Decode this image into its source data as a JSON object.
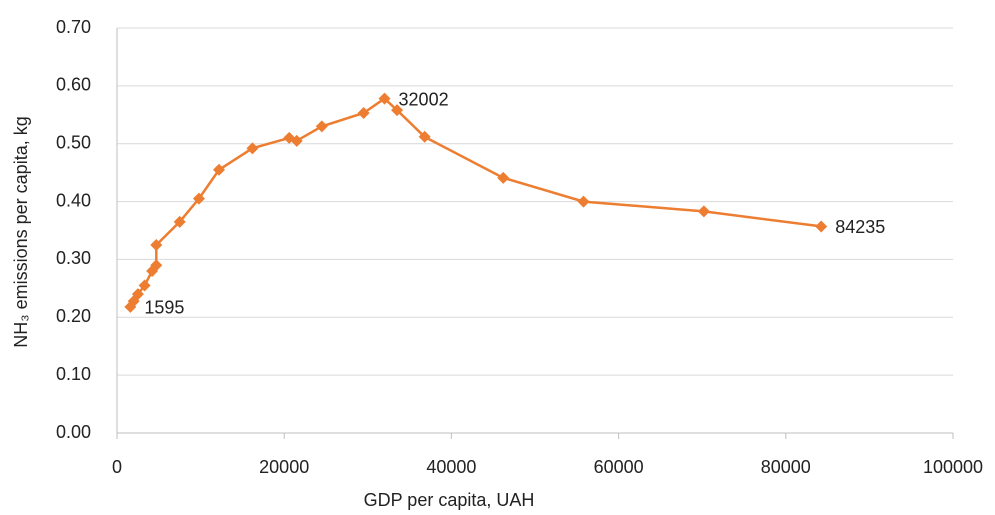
{
  "chart_data": {
    "type": "line",
    "x_label": "GDP per capita, UAH",
    "y_label": "NH₃ emissions per capita, kg",
    "series": [
      {
        "name": "NH3 emissions",
        "color": "#ED7D31",
        "x": [
          1595,
          2000,
          2500,
          3300,
          4200,
          4700,
          4700,
          7500,
          9800,
          12200,
          16200,
          20600,
          21500,
          24500,
          29500,
          32002,
          33500,
          36800,
          46200,
          55800,
          70200,
          84235
        ],
        "values": [
          0.218,
          0.228,
          0.24,
          0.255,
          0.28,
          0.29,
          0.325,
          0.365,
          0.405,
          0.455,
          0.492,
          0.51,
          0.505,
          0.53,
          0.553,
          0.578,
          0.558,
          0.512,
          0.441,
          0.4,
          0.383,
          0.357
        ],
        "point_labels": [
          "1595",
          null,
          null,
          null,
          null,
          null,
          null,
          null,
          null,
          null,
          null,
          null,
          null,
          null,
          null,
          "32002",
          null,
          null,
          null,
          null,
          null,
          "84235"
        ]
      }
    ],
    "xlim": [
      0,
      100000
    ],
    "xticks": [
      0,
      20000,
      40000,
      60000,
      80000,
      100000
    ],
    "ylim": [
      0,
      0.7
    ],
    "yticks": [
      {
        "value": 0,
        "label": "0.00"
      },
      {
        "value": 0.1,
        "label": "0.10"
      },
      {
        "value": 0.2,
        "label": "0.20"
      },
      {
        "value": 0.3,
        "label": "0.30"
      },
      {
        "value": 0.4,
        "label": "0.40"
      },
      {
        "value": 0.5,
        "label": "0.50"
      },
      {
        "value": 0.6,
        "label": "0.60"
      },
      {
        "value": 0.7,
        "label": "0.70"
      }
    ],
    "grid": true
  }
}
